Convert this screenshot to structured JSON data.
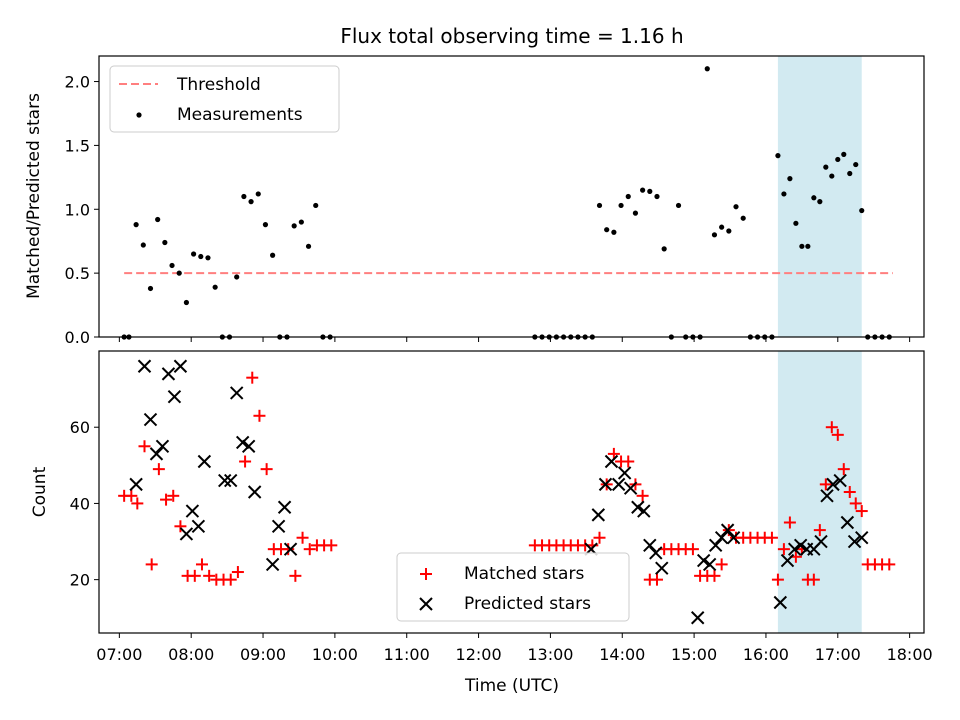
{
  "colors": {
    "threshold": "#ff7f7f",
    "measurement": "#000000",
    "matched": "#ff0000",
    "predicted": "#000000",
    "highlight": "#add8e6"
  },
  "chart_data": [
    {
      "type": "scatter",
      "title": "Flux total observing time = 1.16 h",
      "xlabel": "",
      "ylabel": "Matched/Predicted stars",
      "xlim": [
        "06:43",
        "18:12"
      ],
      "ylim": [
        0,
        2.2
      ],
      "yticks": [
        "0.0",
        "0.5",
        "1.0",
        "1.5",
        "2.0"
      ],
      "grid": false,
      "legend_position": "top-left",
      "highlight_span": [
        "16:10",
        "17:20"
      ],
      "threshold": {
        "name": "Threshold",
        "y": 0.5,
        "x_range": [
          "07:04",
          "17:46"
        ]
      },
      "series": [
        {
          "name": "Measurements",
          "x": [
            "07:04",
            "07:08",
            "07:14",
            "07:20",
            "07:26",
            "07:32",
            "07:38",
            "07:44",
            "07:50",
            "07:56",
            "08:02",
            "08:08",
            "08:14",
            "08:20",
            "08:26",
            "08:32",
            "08:38",
            "08:44",
            "08:50",
            "08:56",
            "09:02",
            "09:08",
            "09:14",
            "09:20",
            "09:26",
            "09:32",
            "09:38",
            "09:44",
            "09:50",
            "09:56",
            "12:47",
            "12:53",
            "12:59",
            "13:05",
            "13:11",
            "13:17",
            "13:23",
            "13:29",
            "13:35",
            "13:41",
            "13:47",
            "13:53",
            "13:59",
            "14:05",
            "14:11",
            "14:17",
            "14:23",
            "14:29",
            "14:35",
            "14:41",
            "14:47",
            "14:53",
            "14:59",
            "15:05",
            "15:11",
            "15:17",
            "15:23",
            "15:29",
            "15:35",
            "15:41",
            "15:47",
            "15:53",
            "15:59",
            "16:05",
            "16:10",
            "16:15",
            "16:20",
            "16:25",
            "16:30",
            "16:35",
            "16:40",
            "16:45",
            "16:50",
            "16:55",
            "17:00",
            "17:05",
            "17:10",
            "17:15",
            "17:20",
            "17:25",
            "17:31",
            "17:37",
            "17:43"
          ],
          "y": [
            0,
            0,
            0.88,
            0.72,
            0.38,
            0.92,
            0.74,
            0.56,
            0.5,
            0.27,
            0.65,
            0.63,
            0.62,
            0.39,
            0,
            0,
            0.47,
            1.1,
            1.06,
            1.12,
            0.88,
            0.64,
            0,
            0,
            0.87,
            0.9,
            0.71,
            1.03,
            0,
            0,
            0,
            0,
            0,
            0,
            0,
            0,
            0,
            0,
            0,
            1.03,
            0.84,
            0.82,
            1.03,
            1.1,
            0.97,
            1.15,
            1.14,
            1.1,
            0.69,
            0,
            1.03,
            0,
            0,
            0,
            2.1,
            0.8,
            0.86,
            0.83,
            1.02,
            0.93,
            0,
            0,
            0,
            0,
            1.42,
            1.12,
            1.24,
            0.89,
            0.71,
            0.71,
            1.09,
            1.06,
            1.33,
            1.26,
            1.39,
            1.43,
            1.28,
            1.35,
            0.99,
            0,
            0,
            0,
            0
          ]
        }
      ]
    },
    {
      "type": "scatter",
      "title": "",
      "xlabel": "Time (UTC)",
      "ylabel": "Count",
      "xlim": [
        "06:43",
        "18:12"
      ],
      "ylim": [
        6,
        80
      ],
      "xticks": [
        "07:00",
        "08:00",
        "09:00",
        "10:00",
        "11:00",
        "12:00",
        "13:00",
        "14:00",
        "15:00",
        "16:00",
        "17:00",
        "18:00"
      ],
      "yticks": [
        "20",
        "40",
        "60"
      ],
      "grid": false,
      "legend_position": "bottom-center",
      "highlight_span": [
        "16:10",
        "17:20"
      ],
      "series": [
        {
          "name": "Matched stars",
          "marker": "plus",
          "x": [
            "07:04",
            "07:10",
            "07:15",
            "07:21",
            "07:27",
            "07:33",
            "07:39",
            "07:45",
            "07:51",
            "07:57",
            "08:03",
            "08:09",
            "08:15",
            "08:21",
            "08:27",
            "08:33",
            "08:39",
            "08:45",
            "08:51",
            "08:57",
            "09:03",
            "09:09",
            "09:15",
            "09:21",
            "09:27",
            "09:33",
            "09:39",
            "09:45",
            "09:51",
            "09:57",
            "12:47",
            "12:53",
            "12:59",
            "13:05",
            "13:11",
            "13:17",
            "13:23",
            "13:29",
            "13:35",
            "13:41",
            "13:47",
            "13:53",
            "13:59",
            "14:05",
            "14:11",
            "14:17",
            "14:23",
            "14:29",
            "14:35",
            "14:41",
            "14:47",
            "14:53",
            "14:59",
            "15:05",
            "15:11",
            "15:17",
            "15:23",
            "15:29",
            "15:35",
            "15:41",
            "15:47",
            "15:53",
            "15:59",
            "16:05",
            "16:10",
            "16:15",
            "16:20",
            "16:25",
            "16:30",
            "16:35",
            "16:40",
            "16:45",
            "16:50",
            "16:55",
            "17:00",
            "17:05",
            "17:10",
            "17:15",
            "17:20",
            "17:25",
            "17:31",
            "17:37",
            "17:43"
          ],
          "y": [
            42,
            42,
            40,
            55,
            24,
            49,
            41,
            42,
            34,
            21,
            21,
            24,
            21,
            20,
            20,
            20,
            22,
            51,
            73,
            63,
            49,
            28,
            28,
            28,
            21,
            31,
            28,
            29,
            29,
            29,
            29,
            29,
            29,
            29,
            29,
            29,
            29,
            29,
            29,
            31,
            45,
            53,
            51,
            51,
            45,
            42,
            20,
            20,
            28,
            28,
            28,
            28,
            28,
            21,
            21,
            21,
            24,
            33,
            31,
            31,
            31,
            31,
            31,
            31,
            20,
            28,
            35,
            26,
            28,
            20,
            20,
            33,
            45,
            60,
            58,
            49,
            43,
            40,
            38,
            24,
            24,
            24,
            24
          ]
        },
        {
          "name": "Predicted stars",
          "marker": "cross",
          "x": [
            "07:14",
            "07:21",
            "07:26",
            "07:31",
            "07:36",
            "07:41",
            "07:46",
            "07:51",
            "07:56",
            "08:01",
            "08:06",
            "08:11",
            "08:28",
            "08:33",
            "08:38",
            "08:43",
            "08:48",
            "08:53",
            "09:08",
            "09:13",
            "09:18",
            "09:23",
            "13:34",
            "13:40",
            "13:46",
            "13:51",
            "13:57",
            "14:02",
            "14:07",
            "14:13",
            "14:18",
            "14:23",
            "14:28",
            "14:33",
            "15:03",
            "15:08",
            "15:13",
            "15:18",
            "15:23",
            "15:28",
            "15:33",
            "16:12",
            "16:18",
            "16:24",
            "16:29",
            "16:34",
            "16:40",
            "16:46",
            "16:51",
            "16:56",
            "17:02",
            "17:08",
            "17:14",
            "17:20"
          ],
          "y": [
            45,
            76,
            62,
            53,
            55,
            74,
            68,
            76,
            32,
            38,
            34,
            51,
            46,
            46,
            69,
            56,
            55,
            43,
            24,
            34,
            39,
            28,
            28,
            37,
            45,
            51,
            45,
            48,
            44,
            39,
            38,
            29,
            27,
            23,
            10,
            25,
            24,
            29,
            31,
            33,
            31,
            14,
            25,
            28,
            29,
            28,
            28,
            30,
            42,
            45,
            46,
            35,
            30,
            31
          ]
        }
      ]
    }
  ]
}
